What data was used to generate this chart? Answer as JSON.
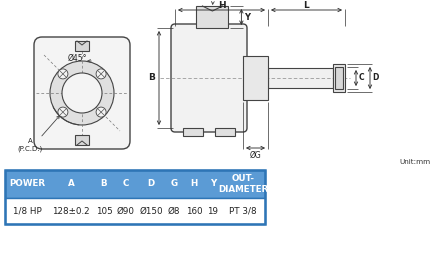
{
  "bg_color": "#ffffff",
  "table_header_bg": "#5b9bd5",
  "table_header_text": "#ffffff",
  "table_row_bg": "#ffffff",
  "table_border_color": "#2e75b6",
  "table_headers": [
    "POWER",
    "A",
    "B",
    "C",
    "D",
    "G",
    "H",
    "Y",
    "OUT-\nDIAMETER"
  ],
  "table_values": [
    "1/8 HP",
    "128±0.2",
    "105",
    "Ø90",
    "Ø150",
    "Ø8",
    "160",
    "19",
    "PT 3/8"
  ],
  "unit_text": "Unit:mm",
  "front_view_label": "Ø45°",
  "pcd_label": "A\n(P.C.D.)"
}
